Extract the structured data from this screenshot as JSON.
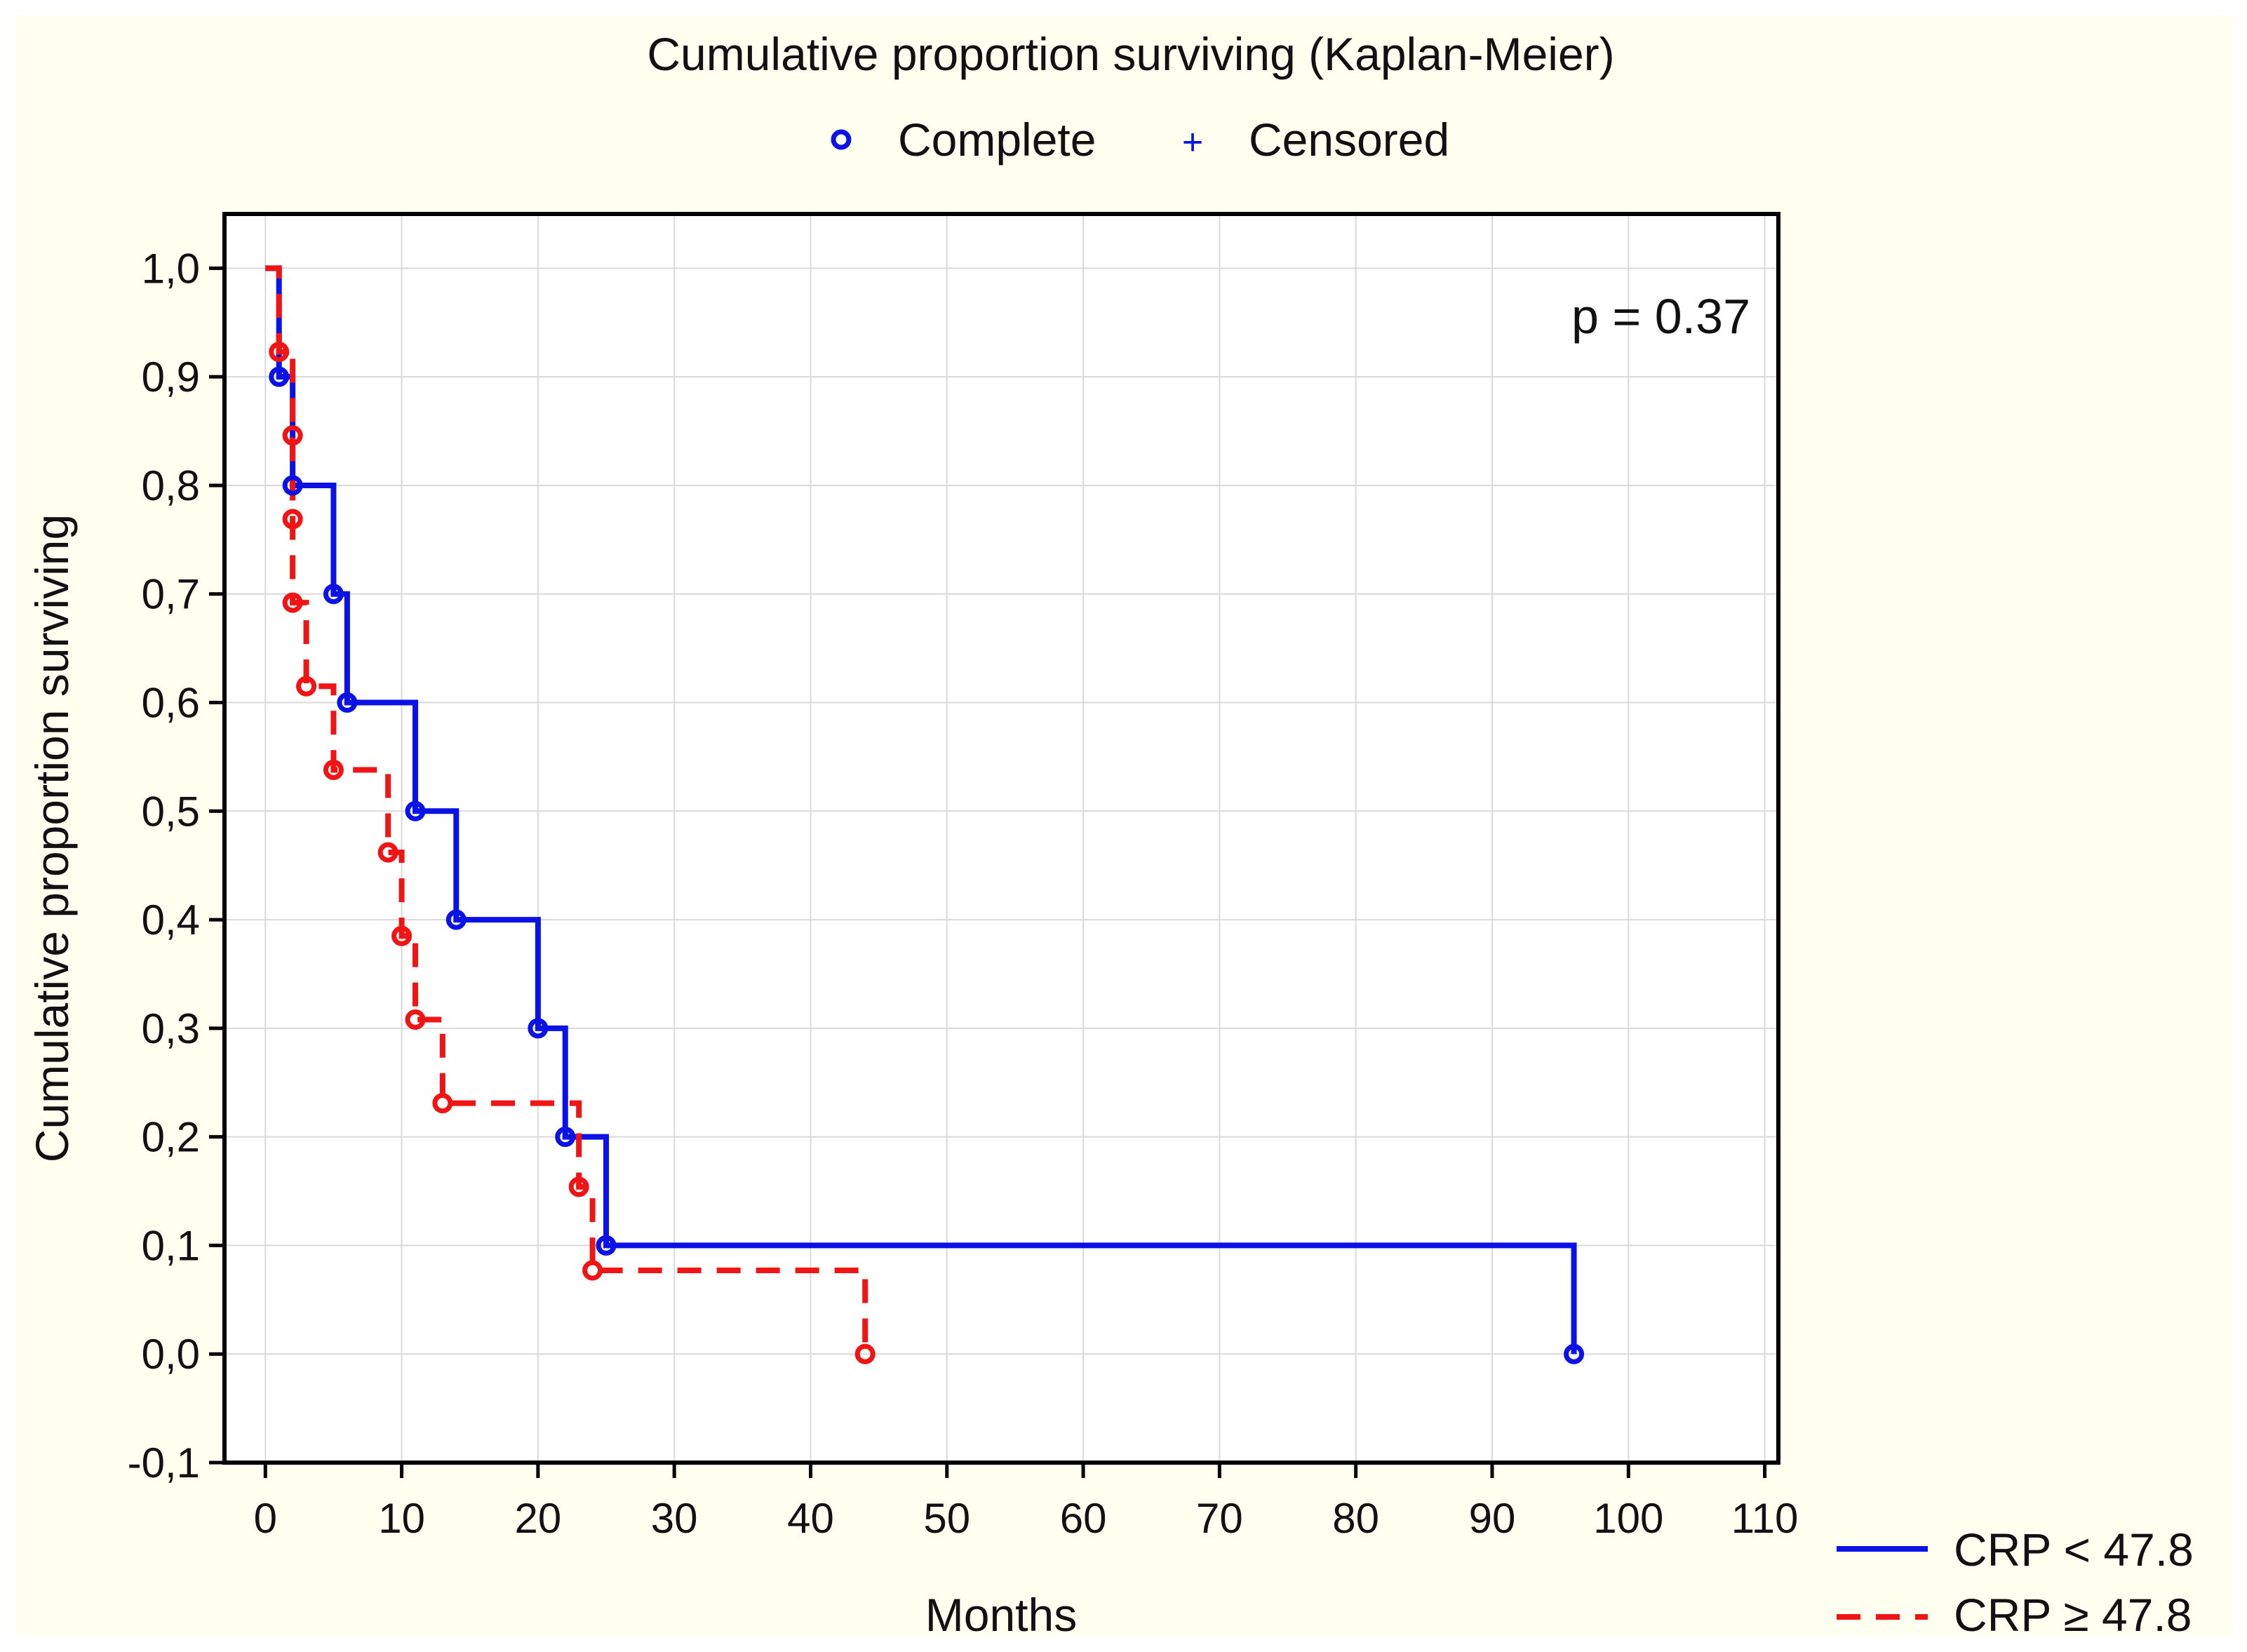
{
  "chart_data": {
    "type": "line",
    "subtype": "kaplan-meier",
    "title": "Cumulative proportion surviving (Kaplan-Meier)",
    "xlabel": "Months",
    "ylabel": "Cumulative proportion surviving",
    "xlim": [
      -3,
      111
    ],
    "ylim": [
      -0.1,
      1.05
    ],
    "x_ticks": [
      0,
      10,
      20,
      30,
      40,
      50,
      60,
      70,
      80,
      90,
      100,
      110
    ],
    "y_ticks": [
      -0.1,
      0.0,
      0.1,
      0.2,
      0.3,
      0.4,
      0.5,
      0.6,
      0.7,
      0.8,
      0.9,
      1.0
    ],
    "x_tick_labels": [
      "0",
      "10",
      "20",
      "30",
      "40",
      "50",
      "60",
      "70",
      "80",
      "90",
      "100",
      "110"
    ],
    "y_tick_labels": [
      "-0,1",
      "0,0",
      "0,1",
      "0,2",
      "0,3",
      "0,4",
      "0,5",
      "0,6",
      "0,7",
      "0,8",
      "0,9",
      "1,0"
    ],
    "grid": true,
    "marker_legend": {
      "complete_symbol": "○",
      "complete_label": "Complete",
      "censored_symbol": "+",
      "censored_label": "Censored"
    },
    "annotation": "p = 0.37",
    "series": [
      {
        "name": "CRP < 47.8",
        "color": "#0a12e6",
        "line_style": "solid",
        "times": [
          1,
          2,
          5,
          6,
          11,
          14,
          20,
          22,
          25,
          96
        ],
        "values": [
          0.9,
          0.8,
          0.7,
          0.6,
          0.5,
          0.4,
          0.3,
          0.2,
          0.1,
          0.0
        ]
      },
      {
        "name": "CRP ≥ 47.8",
        "color": "#f01414",
        "line_style": "dashed",
        "times": [
          1,
          2,
          2,
          2,
          3,
          5,
          9,
          10,
          11,
          13,
          23,
          24,
          44
        ],
        "values": [
          0.923,
          0.846,
          0.769,
          0.692,
          0.615,
          0.538,
          0.462,
          0.385,
          0.308,
          0.231,
          0.154,
          0.077,
          0.0
        ]
      }
    ]
  }
}
